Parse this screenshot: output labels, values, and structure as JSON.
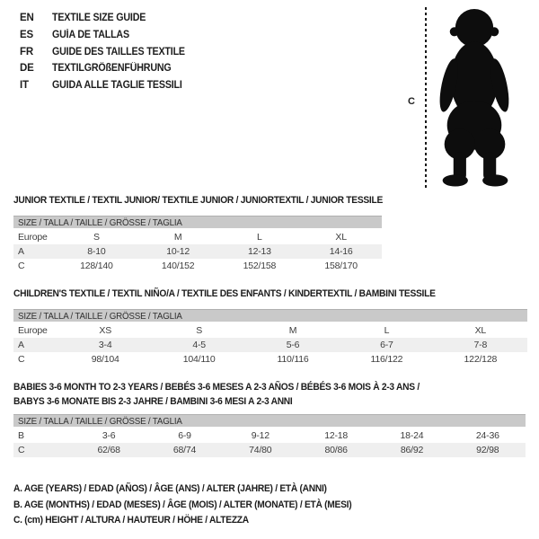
{
  "languages": [
    {
      "code": "EN",
      "label": "TEXTILE SIZE GUIDE"
    },
    {
      "code": "ES",
      "label": "GUÍA DE TALLAS"
    },
    {
      "code": "FR",
      "label": "GUIDE DES TAILLES TEXTILE"
    },
    {
      "code": "DE",
      "label": "TEXTILGRÖßENFÜHRUNG"
    },
    {
      "code": "IT",
      "label": "GUIDA ALLE TAGLIE TESSILI"
    }
  ],
  "figure": {
    "image_name": "toddler-silhouette",
    "height_label": "C"
  },
  "sections": [
    {
      "id": "junior",
      "title_lines": [
        "JUNIOR TEXTILE / TEXTIL JUNIOR/ TEXTILE JUNIOR / JUNIORTEXTIL / JUNIOR TESSILE"
      ],
      "size_header": "SIZE / TALLA / TAILLE / GRÖSSE / TAGLIA",
      "rows": [
        {
          "label": "Europe",
          "values": [
            "S",
            "M",
            "L",
            "XL"
          ],
          "shaded": false
        },
        {
          "label": "A",
          "values": [
            "8-10",
            "10-12",
            "12-13",
            "14-16"
          ],
          "shaded": true
        },
        {
          "label": "C",
          "values": [
            "128/140",
            "140/152",
            "152/158",
            "158/170"
          ],
          "shaded": false
        }
      ]
    },
    {
      "id": "children",
      "title_lines": [
        "CHILDREN'S TEXTILE / TEXTIL NIÑO/A / TEXTILE DES ENFANTS / KINDERTEXTIL / BAMBINI TESSILE"
      ],
      "size_header": "SIZE / TALLA / TAILLE / GRÖSSE / TAGLIA",
      "rows": [
        {
          "label": "Europe",
          "values": [
            "XS",
            "S",
            "M",
            "L",
            "XL"
          ],
          "shaded": false
        },
        {
          "label": "A",
          "values": [
            "3-4",
            "4-5",
            "5-6",
            "6-7",
            "7-8"
          ],
          "shaded": true
        },
        {
          "label": "C",
          "values": [
            "98/104",
            "104/110",
            "110/116",
            "116/122",
            "122/128"
          ],
          "shaded": false
        }
      ]
    },
    {
      "id": "babies",
      "title_lines": [
        "BABIES 3-6 MONTH TO 2-3 YEARS / BEBÉS 3-6 MESES A 2-3 AÑOS / BÉBÉS 3-6 MOIS À 2-3 ANS /",
        "BABYS 3-6 MONATE BIS 2-3 JAHRE / BAMBINI 3-6 MESI A 2-3 ANNI"
      ],
      "size_header": "SIZE / TALLA / TAILLE / GRÖSSE / TAGLIA",
      "rows": [
        {
          "label": "B",
          "values": [
            "3-6",
            "6-9",
            "9-12",
            "12-18",
            "18-24",
            "24-36"
          ],
          "shaded": false
        },
        {
          "label": "C",
          "values": [
            "62/68",
            "68/74",
            "74/80",
            "80/86",
            "86/92",
            "92/98"
          ],
          "shaded": true
        }
      ]
    }
  ],
  "footnotes": [
    "A. AGE (YEARS) / EDAD (AÑOS) / ÂGE (ANS) / ALTER (JAHRE) / ETÀ (ANNI)",
    "B. AGE (MONTHS) / EDAD (MESES) / ÂGE (MOIS) / ALTER (MONATE) / ETÀ (MESI)",
    "C. (cm) HEIGHT / ALTURA / HAUTEUR / HÖHE / ALTEZZA"
  ],
  "colors": {
    "header_bar": "#c9c9c9",
    "row_shaded": "#efefef",
    "heading_text": "#1c1c1c",
    "table_text": "#3d3d3d",
    "silhouette": "#0d0d0d"
  }
}
